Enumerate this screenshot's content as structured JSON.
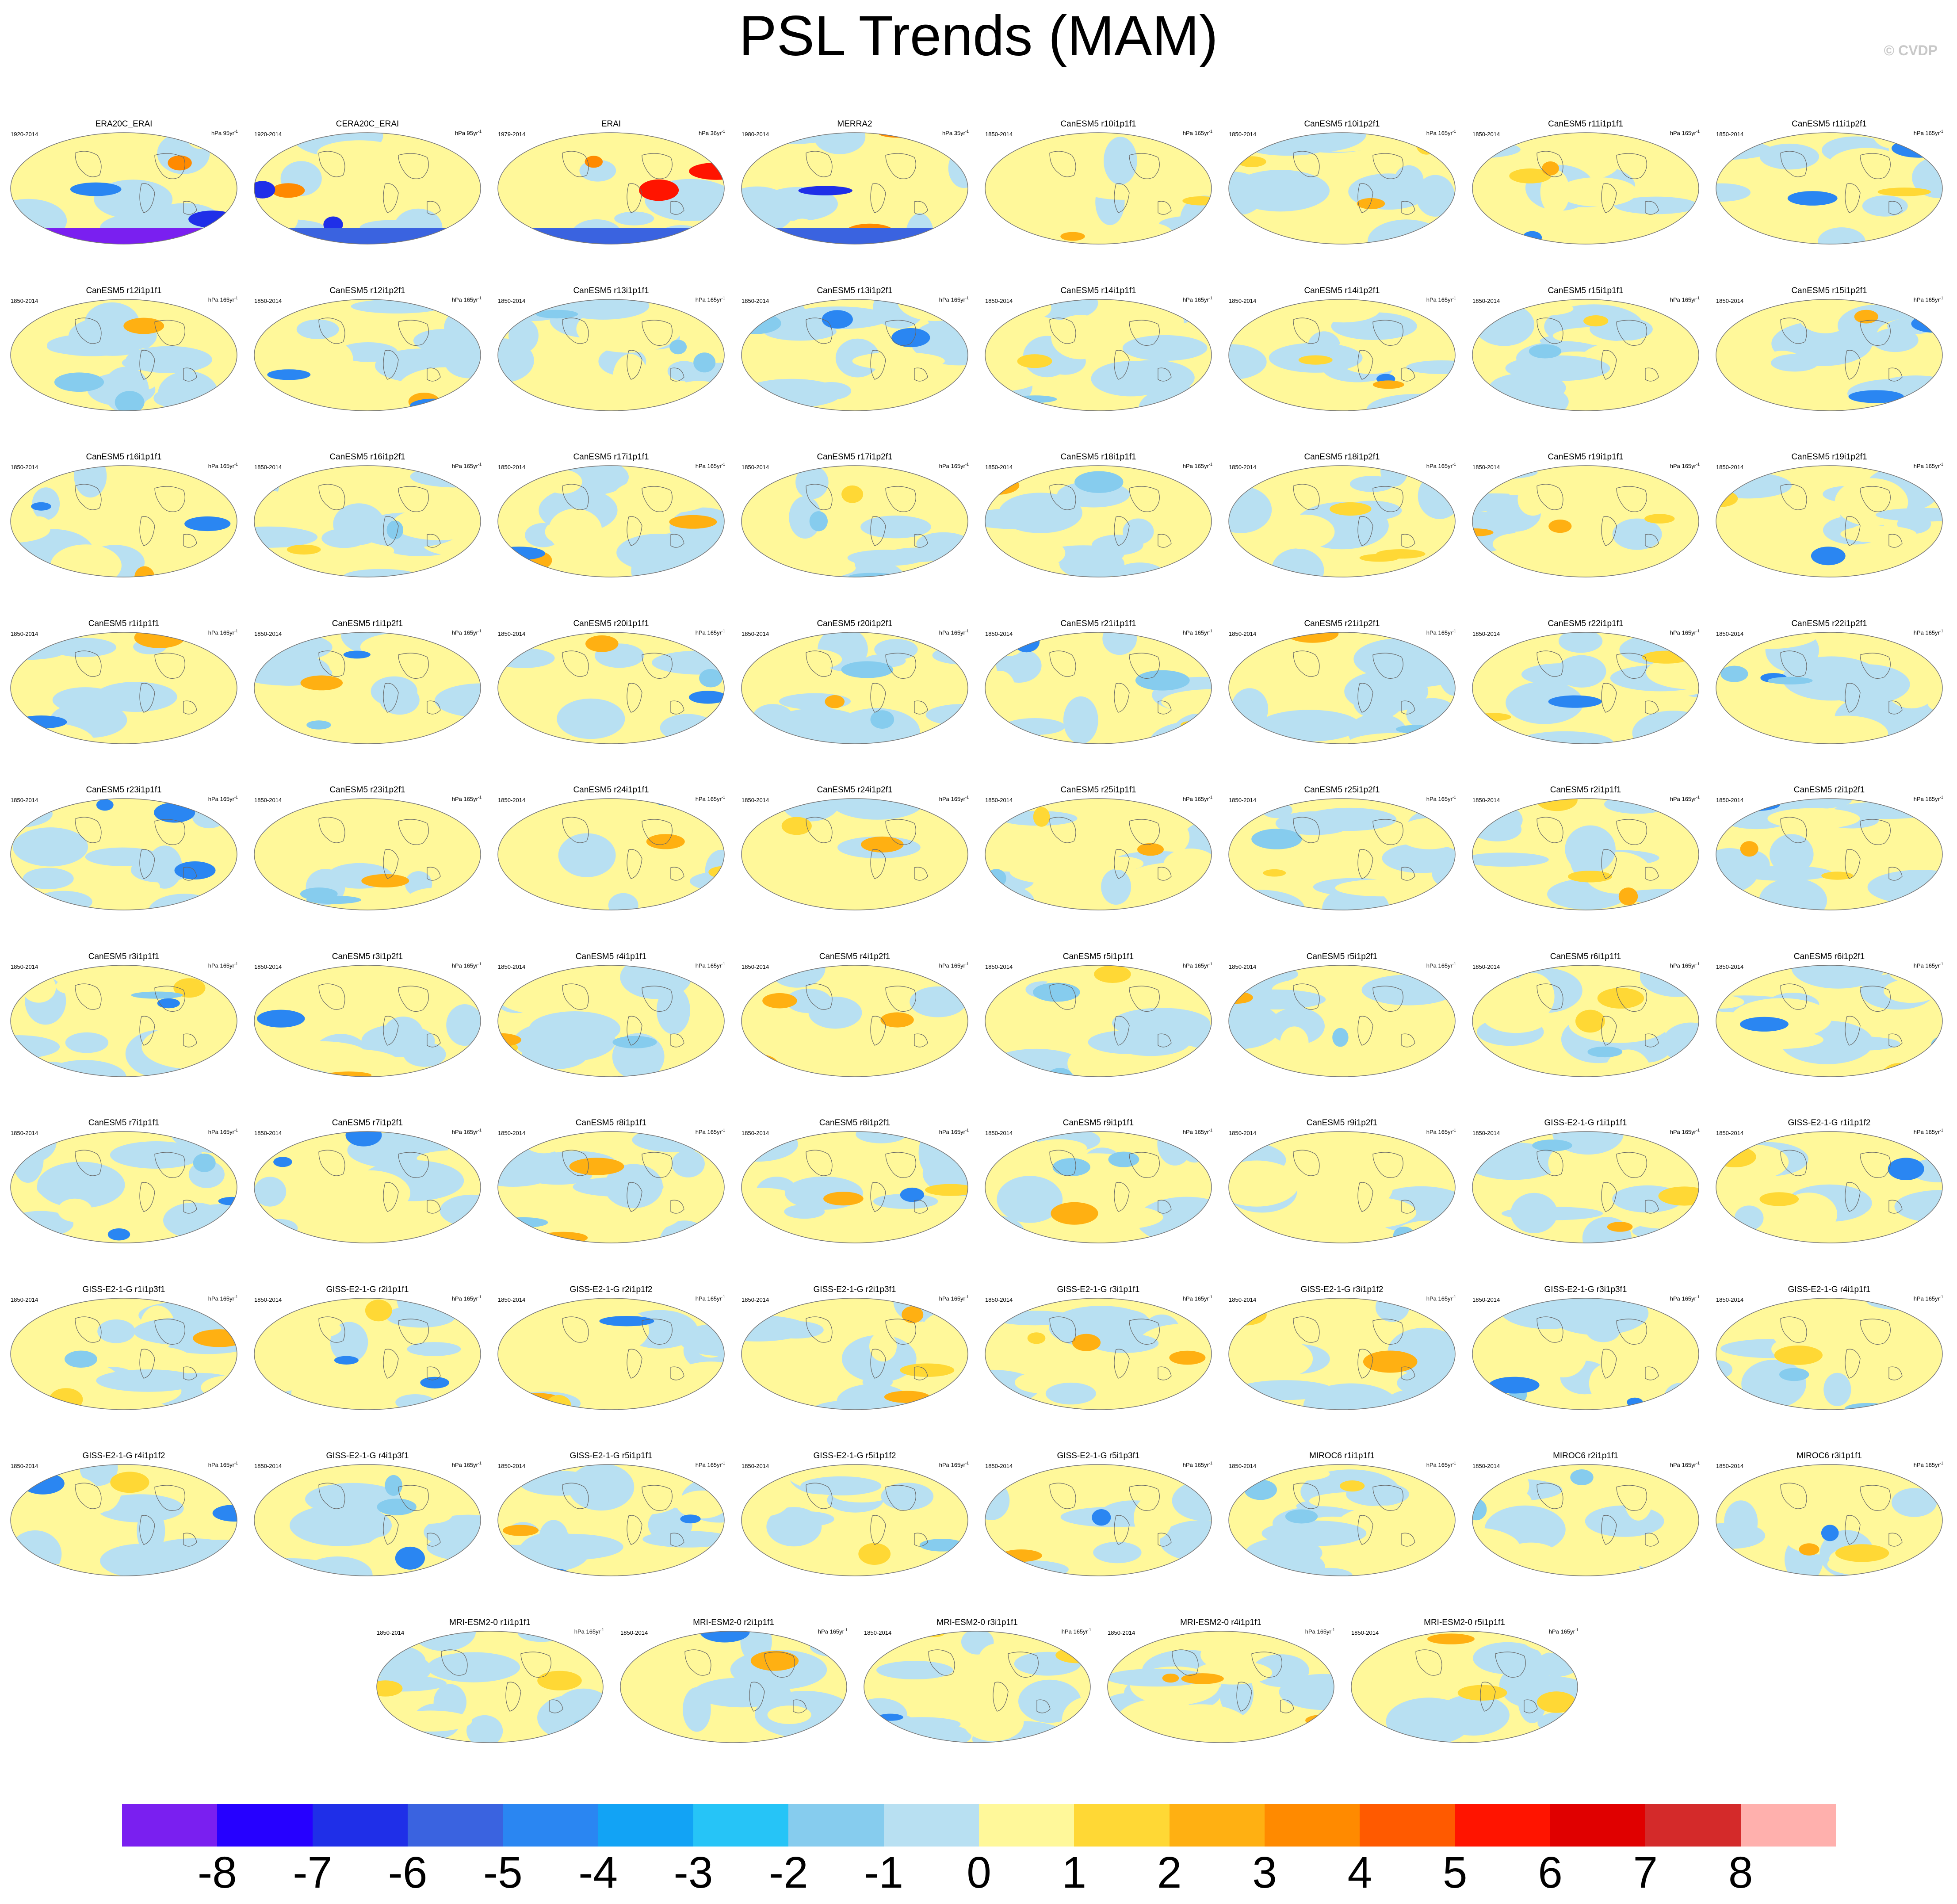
{
  "title": "PSL Trends (MAM)",
  "watermark": "© CVDP",
  "colorbar": {
    "colors": [
      "#7a1ff0",
      "#2600ff",
      "#1f2fe8",
      "#3a63e0",
      "#2a86f2",
      "#12a3f5",
      "#26c4f7",
      "#86ccee",
      "#b8e0f2",
      "#fff89a",
      "#ffd835",
      "#ffb012",
      "#ff8a00",
      "#ff5a00",
      "#ff1400",
      "#e00000",
      "#d42a2a",
      "#ffb0ad"
    ],
    "labels": [
      "-8",
      "-7",
      "-6",
      "-5",
      "-4",
      "-3",
      "-2",
      "-1",
      "0",
      "1",
      "2",
      "3",
      "4",
      "5",
      "6",
      "7",
      "8"
    ]
  },
  "panels": [
    {
      "name": "ERA20C_ERAI",
      "period": "1920-2014",
      "units": "hPa 95yr",
      "style": "obs"
    },
    {
      "name": "CERA20C_ERAI",
      "period": "1920-2014",
      "units": "hPa 95yr",
      "style": "obs"
    },
    {
      "name": "ERAI",
      "period": "1979-2014",
      "units": "hPa 36yr",
      "style": "obs"
    },
    {
      "name": "MERRA2",
      "period": "1980-2014",
      "units": "hPa 35yr",
      "style": "obs"
    },
    {
      "name": "CanESM5 r10i1p1f1",
      "period": "1850-2014",
      "units": "hPa 165yr",
      "style": "model"
    },
    {
      "name": "CanESM5 r10i1p2f1",
      "period": "1850-2014",
      "units": "hPa 165yr",
      "style": "model"
    },
    {
      "name": "CanESM5 r11i1p1f1",
      "period": "1850-2014",
      "units": "hPa 165yr",
      "style": "model"
    },
    {
      "name": "CanESM5 r11i1p2f1",
      "period": "1850-2014",
      "units": "hPa 165yr",
      "style": "model"
    },
    {
      "name": "CanESM5 r12i1p1f1",
      "period": "1850-2014",
      "units": "hPa 165yr",
      "style": "model"
    },
    {
      "name": "CanESM5 r12i1p2f1",
      "period": "1850-2014",
      "units": "hPa 165yr",
      "style": "model"
    },
    {
      "name": "CanESM5 r13i1p1f1",
      "period": "1850-2014",
      "units": "hPa 165yr",
      "style": "model"
    },
    {
      "name": "CanESM5 r13i1p2f1",
      "period": "1850-2014",
      "units": "hPa 165yr",
      "style": "model"
    },
    {
      "name": "CanESM5 r14i1p1f1",
      "period": "1850-2014",
      "units": "hPa 165yr",
      "style": "model"
    },
    {
      "name": "CanESM5 r14i1p2f1",
      "period": "1850-2014",
      "units": "hPa 165yr",
      "style": "model"
    },
    {
      "name": "CanESM5 r15i1p1f1",
      "period": "1850-2014",
      "units": "hPa 165yr",
      "style": "model"
    },
    {
      "name": "CanESM5 r15i1p2f1",
      "period": "1850-2014",
      "units": "hPa 165yr",
      "style": "model"
    },
    {
      "name": "CanESM5 r16i1p1f1",
      "period": "1850-2014",
      "units": "hPa 165yr",
      "style": "model"
    },
    {
      "name": "CanESM5 r16i1p2f1",
      "period": "1850-2014",
      "units": "hPa 165yr",
      "style": "model"
    },
    {
      "name": "CanESM5 r17i1p1f1",
      "period": "1850-2014",
      "units": "hPa 165yr",
      "style": "model"
    },
    {
      "name": "CanESM5 r17i1p2f1",
      "period": "1850-2014",
      "units": "hPa 165yr",
      "style": "model"
    },
    {
      "name": "CanESM5 r18i1p1f1",
      "period": "1850-2014",
      "units": "hPa 165yr",
      "style": "model"
    },
    {
      "name": "CanESM5 r18i1p2f1",
      "period": "1850-2014",
      "units": "hPa 165yr",
      "style": "model"
    },
    {
      "name": "CanESM5 r19i1p1f1",
      "period": "1850-2014",
      "units": "hPa 165yr",
      "style": "model"
    },
    {
      "name": "CanESM5 r19i1p2f1",
      "period": "1850-2014",
      "units": "hPa 165yr",
      "style": "model"
    },
    {
      "name": "CanESM5 r1i1p1f1",
      "period": "1850-2014",
      "units": "hPa 165yr",
      "style": "model"
    },
    {
      "name": "CanESM5 r1i1p2f1",
      "period": "1850-2014",
      "units": "hPa 165yr",
      "style": "model"
    },
    {
      "name": "CanESM5 r20i1p1f1",
      "period": "1850-2014",
      "units": "hPa 165yr",
      "style": "model"
    },
    {
      "name": "CanESM5 r20i1p2f1",
      "period": "1850-2014",
      "units": "hPa 165yr",
      "style": "model"
    },
    {
      "name": "CanESM5 r21i1p1f1",
      "period": "1850-2014",
      "units": "hPa 165yr",
      "style": "model"
    },
    {
      "name": "CanESM5 r21i1p2f1",
      "period": "1850-2014",
      "units": "hPa 165yr",
      "style": "model"
    },
    {
      "name": "CanESM5 r22i1p1f1",
      "period": "1850-2014",
      "units": "hPa 165yr",
      "style": "model"
    },
    {
      "name": "CanESM5 r22i1p2f1",
      "period": "1850-2014",
      "units": "hPa 165yr",
      "style": "model"
    },
    {
      "name": "CanESM5 r23i1p1f1",
      "period": "1850-2014",
      "units": "hPa 165yr",
      "style": "model"
    },
    {
      "name": "CanESM5 r23i1p2f1",
      "period": "1850-2014",
      "units": "hPa 165yr",
      "style": "model"
    },
    {
      "name": "CanESM5 r24i1p1f1",
      "period": "1850-2014",
      "units": "hPa 165yr",
      "style": "model"
    },
    {
      "name": "CanESM5 r24i1p2f1",
      "period": "1850-2014",
      "units": "hPa 165yr",
      "style": "model"
    },
    {
      "name": "CanESM5 r25i1p1f1",
      "period": "1850-2014",
      "units": "hPa 165yr",
      "style": "model"
    },
    {
      "name": "CanESM5 r25i1p2f1",
      "period": "1850-2014",
      "units": "hPa 165yr",
      "style": "model"
    },
    {
      "name": "CanESM5 r2i1p1f1",
      "period": "1850-2014",
      "units": "hPa 165yr",
      "style": "model"
    },
    {
      "name": "CanESM5 r2i1p2f1",
      "period": "1850-2014",
      "units": "hPa 165yr",
      "style": "model"
    },
    {
      "name": "CanESM5 r3i1p1f1",
      "period": "1850-2014",
      "units": "hPa 165yr",
      "style": "model"
    },
    {
      "name": "CanESM5 r3i1p2f1",
      "period": "1850-2014",
      "units": "hPa 165yr",
      "style": "model"
    },
    {
      "name": "CanESM5 r4i1p1f1",
      "period": "1850-2014",
      "units": "hPa 165yr",
      "style": "model"
    },
    {
      "name": "CanESM5 r4i1p2f1",
      "period": "1850-2014",
      "units": "hPa 165yr",
      "style": "model"
    },
    {
      "name": "CanESM5 r5i1p1f1",
      "period": "1850-2014",
      "units": "hPa 165yr",
      "style": "model"
    },
    {
      "name": "CanESM5 r5i1p2f1",
      "period": "1850-2014",
      "units": "hPa 165yr",
      "style": "model"
    },
    {
      "name": "CanESM5 r6i1p1f1",
      "period": "1850-2014",
      "units": "hPa 165yr",
      "style": "model"
    },
    {
      "name": "CanESM5 r6i1p2f1",
      "period": "1850-2014",
      "units": "hPa 165yr",
      "style": "model"
    },
    {
      "name": "CanESM5 r7i1p1f1",
      "period": "1850-2014",
      "units": "hPa 165yr",
      "style": "model"
    },
    {
      "name": "CanESM5 r7i1p2f1",
      "period": "1850-2014",
      "units": "hPa 165yr",
      "style": "model"
    },
    {
      "name": "CanESM5 r8i1p1f1",
      "period": "1850-2014",
      "units": "hPa 165yr",
      "style": "model"
    },
    {
      "name": "CanESM5 r8i1p2f1",
      "period": "1850-2014",
      "units": "hPa 165yr",
      "style": "model"
    },
    {
      "name": "CanESM5 r9i1p1f1",
      "period": "1850-2014",
      "units": "hPa 165yr",
      "style": "model"
    },
    {
      "name": "CanESM5 r9i1p2f1",
      "period": "1850-2014",
      "units": "hPa 165yr",
      "style": "model"
    },
    {
      "name": "GISS-E2-1-G r1i1p1f1",
      "period": "1850-2014",
      "units": "hPa 165yr",
      "style": "model"
    },
    {
      "name": "GISS-E2-1-G r1i1p1f2",
      "period": "1850-2014",
      "units": "hPa 165yr",
      "style": "model"
    },
    {
      "name": "GISS-E2-1-G r1i1p3f1",
      "period": "1850-2014",
      "units": "hPa 165yr",
      "style": "model"
    },
    {
      "name": "GISS-E2-1-G r2i1p1f1",
      "period": "1850-2014",
      "units": "hPa 165yr",
      "style": "model"
    },
    {
      "name": "GISS-E2-1-G r2i1p1f2",
      "period": "1850-2014",
      "units": "hPa 165yr",
      "style": "model"
    },
    {
      "name": "GISS-E2-1-G r2i1p3f1",
      "period": "1850-2014",
      "units": "hPa 165yr",
      "style": "model"
    },
    {
      "name": "GISS-E2-1-G r3i1p1f1",
      "period": "1850-2014",
      "units": "hPa 165yr",
      "style": "model"
    },
    {
      "name": "GISS-E2-1-G r3i1p1f2",
      "period": "1850-2014",
      "units": "hPa 165yr",
      "style": "model"
    },
    {
      "name": "GISS-E2-1-G r3i1p3f1",
      "period": "1850-2014",
      "units": "hPa 165yr",
      "style": "model"
    },
    {
      "name": "GISS-E2-1-G r4i1p1f1",
      "period": "1850-2014",
      "units": "hPa 165yr",
      "style": "model"
    },
    {
      "name": "GISS-E2-1-G r4i1p1f2",
      "period": "1850-2014",
      "units": "hPa 165yr",
      "style": "model"
    },
    {
      "name": "GISS-E2-1-G r4i1p3f1",
      "period": "1850-2014",
      "units": "hPa 165yr",
      "style": "model"
    },
    {
      "name": "GISS-E2-1-G r5i1p1f1",
      "period": "1850-2014",
      "units": "hPa 165yr",
      "style": "model"
    },
    {
      "name": "GISS-E2-1-G r5i1p1f2",
      "period": "1850-2014",
      "units": "hPa 165yr",
      "style": "model"
    },
    {
      "name": "GISS-E2-1-G r5i1p3f1",
      "period": "1850-2014",
      "units": "hPa 165yr",
      "style": "model"
    },
    {
      "name": "MIROC6 r1i1p1f1",
      "period": "1850-2014",
      "units": "hPa 165yr",
      "style": "model"
    },
    {
      "name": "MIROC6 r2i1p1f1",
      "period": "1850-2014",
      "units": "hPa 165yr",
      "style": "model"
    },
    {
      "name": "MIROC6 r3i1p1f1",
      "period": "1850-2014",
      "units": "hPa 165yr",
      "style": "model"
    },
    {
      "name": "MRI-ESM2-0 r1i1p1f1",
      "period": "1850-2014",
      "units": "hPa 165yr",
      "style": "model"
    },
    {
      "name": "MRI-ESM2-0 r2i1p1f1",
      "period": "1850-2014",
      "units": "hPa 165yr",
      "style": "model"
    },
    {
      "name": "MRI-ESM2-0 r3i1p1f1",
      "period": "1850-2014",
      "units": "hPa 165yr",
      "style": "model"
    },
    {
      "name": "MRI-ESM2-0 r4i1p1f1",
      "period": "1850-2014",
      "units": "hPa 165yr",
      "style": "model"
    },
    {
      "name": "MRI-ESM2-0 r5i1p1f1",
      "period": "1850-2014",
      "units": "hPa 165yr",
      "style": "model"
    }
  ]
}
